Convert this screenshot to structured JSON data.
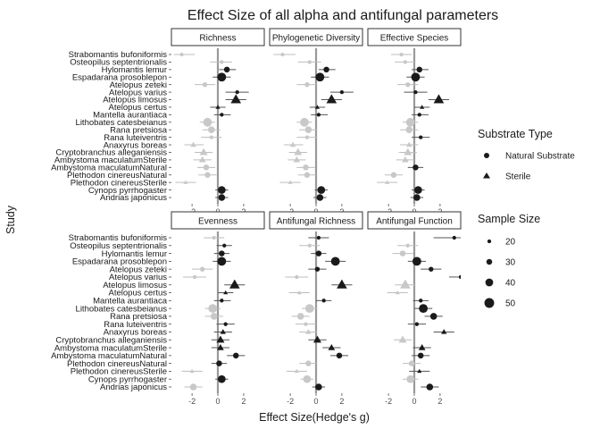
{
  "chart_data": {
    "type": "scatter",
    "title": "Effect Size of all alpha and antifungal parameters",
    "xlabel": "Effect Size(Hedge's g)",
    "ylabel": "Study",
    "xlim": [
      -3.6,
      3.6
    ],
    "x_ticks": [
      -2,
      0,
      2
    ],
    "x_tick_labels": [
      "-2",
      "0",
      "2"
    ],
    "grid": false,
    "reference_line_x": 0,
    "significance": {
      "significant_color": "#1a1a1a",
      "nonsignificant_color": "#c8c8c8"
    },
    "studies": [
      "Strabomantis bufoniformis",
      "Osteopilus septentrionalis",
      "Hylomantis lemur",
      "Espadarana prosoblepon",
      "Atelopus zeteki",
      "Atelopus varius",
      "Atelopus limosus",
      "Atelopus certus",
      "Mantella aurantiaca",
      "Lithobates catesbeianus",
      "Rana pretsiosa",
      "Rana luteiventris",
      "Anaxyrus boreas",
      "Cryptobranchus alleganiensis",
      "Ambystoma maculatumSterile",
      "Ambystoma maculatumNatural",
      "Plethodon cinereusNatural",
      "Plethodon cinereusSterile",
      "Cynops pyrrhogaster",
      "Andrias japonicus"
    ],
    "point_shape": [
      "circle",
      "circle",
      "circle",
      "circle",
      "circle",
      "circle",
      "triangle",
      "triangle",
      "circle",
      "circle",
      "circle",
      "circle",
      "triangle",
      "triangle",
      "triangle",
      "circle",
      "circle",
      "triangle",
      "circle",
      "circle"
    ],
    "point_size": [
      20,
      20,
      30,
      45,
      25,
      20,
      45,
      20,
      20,
      45,
      35,
      20,
      25,
      35,
      30,
      30,
      30,
      20,
      40,
      35
    ],
    "panels": [
      {
        "label": "Richness",
        "x": [
          -2.8,
          0.3,
          0.7,
          0.3,
          -1.0,
          1.5,
          1.4,
          0.0,
          0.3,
          -0.8,
          -0.5,
          -0.5,
          -1.9,
          -1.1,
          -1.2,
          -0.9,
          -0.8,
          -2.5,
          0.3,
          0.3
        ],
        "ci_low": [
          -3.4,
          -0.6,
          0.1,
          -0.4,
          -1.8,
          0.6,
          0.6,
          -0.6,
          -0.3,
          -1.4,
          -1.2,
          -1.3,
          -2.6,
          -1.8,
          -1.9,
          -1.6,
          -1.5,
          -3.3,
          -0.2,
          -0.2
        ],
        "ci_high": [
          -1.8,
          1.1,
          1.4,
          1.0,
          -0.2,
          2.4,
          2.2,
          0.6,
          1.0,
          -0.2,
          0.2,
          0.3,
          -1.1,
          -0.4,
          -0.5,
          -0.2,
          -0.1,
          -1.7,
          0.8,
          0.8
        ],
        "significant": [
          false,
          false,
          true,
          true,
          false,
          true,
          true,
          true,
          true,
          false,
          false,
          false,
          false,
          false,
          false,
          false,
          false,
          false,
          true,
          true
        ]
      },
      {
        "label": "Phylogenetic Diversity",
        "x": [
          -2.6,
          -0.5,
          0.8,
          0.3,
          -0.7,
          2.0,
          1.2,
          0.1,
          0.2,
          -0.9,
          -0.6,
          -0.7,
          -1.8,
          -1.4,
          -1.5,
          -0.8,
          -0.7,
          -2.0,
          0.4,
          0.3
        ],
        "ci_low": [
          -3.3,
          -1.4,
          0.2,
          -0.4,
          -1.5,
          1.1,
          0.4,
          -0.5,
          -0.4,
          -1.5,
          -1.3,
          -1.5,
          -2.5,
          -2.1,
          -2.2,
          -1.5,
          -1.4,
          -2.8,
          -0.1,
          -0.2
        ],
        "ci_high": [
          -1.6,
          0.4,
          1.5,
          1.0,
          0.1,
          2.9,
          2.0,
          0.7,
          0.9,
          -0.3,
          0.1,
          0.1,
          -1.0,
          -0.7,
          -0.8,
          -0.1,
          0.0,
          -1.2,
          0.9,
          0.8
        ],
        "significant": [
          false,
          false,
          true,
          true,
          false,
          true,
          true,
          true,
          true,
          false,
          false,
          false,
          false,
          false,
          false,
          false,
          false,
          false,
          true,
          true
        ]
      },
      {
        "label": "Effective Species",
        "x": [
          -1.0,
          -0.7,
          0.4,
          0.1,
          -0.5,
          0.1,
          1.9,
          0.6,
          0.4,
          -0.3,
          -0.4,
          0.5,
          -0.4,
          -0.5,
          -0.7,
          0.1,
          -1.6,
          -2.1,
          0.3,
          0.2
        ],
        "ci_low": [
          -1.8,
          -1.5,
          -0.2,
          -0.6,
          -1.3,
          -0.8,
          1.1,
          0.0,
          -0.2,
          -0.9,
          -1.1,
          -0.2,
          -1.1,
          -1.2,
          -1.4,
          -0.5,
          -2.3,
          -2.9,
          -0.2,
          -0.3
        ],
        "ci_high": [
          -0.2,
          0.1,
          1.1,
          0.8,
          0.3,
          1.0,
          2.7,
          1.2,
          1.1,
          0.3,
          0.3,
          1.2,
          0.3,
          0.2,
          0.0,
          0.7,
          -0.9,
          -1.3,
          0.8,
          0.7
        ],
        "significant": [
          false,
          false,
          true,
          true,
          false,
          true,
          true,
          true,
          true,
          false,
          false,
          true,
          false,
          false,
          false,
          true,
          false,
          false,
          true,
          true
        ]
      },
      {
        "label": "Evenness",
        "x": [
          -0.3,
          0.5,
          0.3,
          0.3,
          -1.2,
          -1.8,
          1.3,
          0.6,
          0.3,
          -0.4,
          -0.3,
          0.6,
          0.4,
          0.2,
          0.2,
          1.4,
          0.1,
          -2.0,
          0.3,
          -1.9
        ],
        "ci_low": [
          -1.1,
          -0.1,
          -0.3,
          -0.4,
          -2.0,
          -2.7,
          0.5,
          0.0,
          -0.3,
          -1.0,
          -1.0,
          -0.1,
          -0.3,
          -0.5,
          -0.5,
          0.7,
          -0.5,
          -2.8,
          -0.2,
          -2.6
        ],
        "ci_high": [
          0.5,
          1.1,
          0.9,
          1.0,
          -0.4,
          -0.9,
          2.1,
          1.2,
          1.0,
          0.2,
          0.4,
          1.3,
          1.1,
          0.9,
          0.9,
          2.1,
          0.7,
          -1.2,
          0.8,
          -1.2
        ],
        "significant": [
          false,
          true,
          true,
          true,
          false,
          false,
          true,
          true,
          true,
          false,
          false,
          true,
          true,
          true,
          true,
          true,
          true,
          false,
          true,
          false
        ]
      },
      {
        "label": "Antifungal Richness",
        "x": [
          0.2,
          -0.5,
          0.2,
          1.5,
          0.1,
          -1.5,
          2.0,
          -1.3,
          0.6,
          -0.5,
          -1.2,
          -0.8,
          -0.6,
          0.1,
          1.2,
          1.8,
          -0.6,
          -1.5,
          -0.7,
          0.2
        ],
        "ci_low": [
          -0.6,
          -1.3,
          -0.4,
          0.7,
          -0.6,
          -2.4,
          1.2,
          -2.1,
          0.0,
          -1.1,
          -1.9,
          -1.6,
          -1.3,
          -0.6,
          0.5,
          1.1,
          -1.3,
          -2.3,
          -1.2,
          -0.3
        ],
        "ci_high": [
          1.0,
          0.3,
          0.8,
          2.3,
          0.8,
          -0.6,
          2.8,
          -0.5,
          1.2,
          0.1,
          -0.5,
          0.0,
          0.1,
          0.8,
          1.9,
          2.5,
          0.1,
          -0.7,
          -0.2,
          0.7
        ],
        "significant": [
          true,
          false,
          true,
          true,
          true,
          false,
          true,
          false,
          true,
          false,
          false,
          false,
          false,
          true,
          true,
          true,
          false,
          false,
          false,
          true
        ]
      },
      {
        "label": "Antifungal Function",
        "x": [
          3.1,
          -0.5,
          -0.9,
          0.2,
          1.3,
          3.6,
          -0.7,
          -1.3,
          0.5,
          0.7,
          1.5,
          0.2,
          2.3,
          -0.9,
          0.6,
          0.5,
          -0.2,
          0.4,
          -0.3,
          1.2
        ],
        "ci_low": [
          1.5,
          -1.3,
          -1.7,
          -0.5,
          0.5,
          2.7,
          -1.5,
          -2.1,
          -0.1,
          0.0,
          0.8,
          -0.5,
          1.5,
          -1.6,
          -0.1,
          -0.2,
          -0.9,
          -0.4,
          -0.9,
          0.5
        ],
        "ci_high": [
          3.6,
          0.3,
          -0.1,
          0.9,
          2.1,
          3.6,
          0.1,
          -0.5,
          1.1,
          1.4,
          2.2,
          0.9,
          3.1,
          -0.2,
          1.3,
          1.2,
          0.5,
          1.2,
          0.3,
          1.9
        ],
        "significant": [
          true,
          false,
          false,
          true,
          true,
          true,
          false,
          false,
          true,
          true,
          true,
          true,
          true,
          false,
          true,
          true,
          false,
          true,
          false,
          true
        ]
      }
    ],
    "legend": {
      "position": "right",
      "shape_title": "Substrate Type",
      "shape_items": [
        {
          "label": "Natural Substrate",
          "shape": "circle"
        },
        {
          "label": "Sterile",
          "shape": "triangle"
        }
      ],
      "size_title": "Sample Size",
      "size_items": [
        {
          "label": "20",
          "value": 20
        },
        {
          "label": "30",
          "value": 30
        },
        {
          "label": "40",
          "value": 40
        },
        {
          "label": "50",
          "value": 50
        }
      ]
    }
  }
}
